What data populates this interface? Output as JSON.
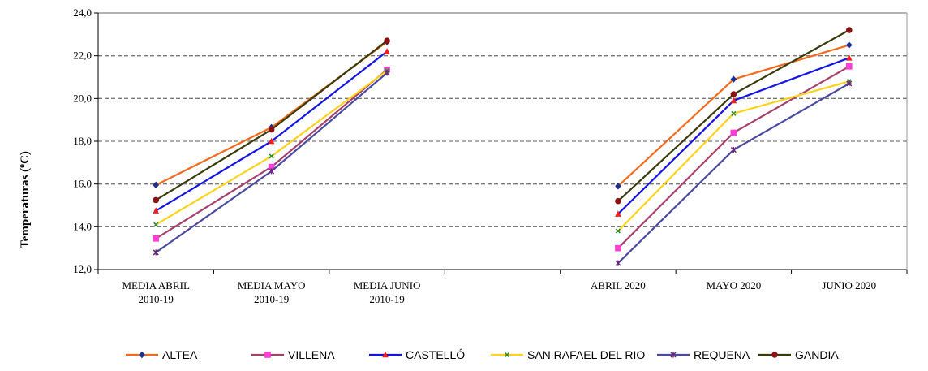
{
  "chart_data": {
    "type": "line",
    "title": "",
    "xlabel": "",
    "ylabel": "Temperaturas  (ºC)",
    "ylim": [
      12,
      24
    ],
    "yticks": [
      "12,0",
      "14,0",
      "16,0",
      "18,0",
      "20,0",
      "22,0",
      "24,0"
    ],
    "grid": "horizontal dashed",
    "legend_position": "bottom",
    "categories": [
      [
        "MEDIA ABRIL",
        "2010-19"
      ],
      [
        "MEDIA MAYO",
        "2010-19"
      ],
      [
        "MEDIA JUNIO",
        "2010-19"
      ],
      [
        ""
      ],
      [
        "ABRIL   2020"
      ],
      [
        "MAYO  2020"
      ],
      [
        "JUNIO  2020"
      ]
    ],
    "series": [
      {
        "name": "ALTEA",
        "color": "#f26b1d",
        "marker": "diamond",
        "marker_color": "#1f2f8f",
        "values": [
          15.95,
          18.65,
          22.65,
          null,
          15.9,
          20.9,
          22.5
        ]
      },
      {
        "name": "VILLENA",
        "color": "#a6416e",
        "marker": "square",
        "marker_color": "#ff3dd8",
        "values": [
          13.45,
          16.8,
          21.35,
          null,
          13.0,
          18.4,
          21.5
        ]
      },
      {
        "name": "CASTELLÓ",
        "color": "#1414e6",
        "marker": "triangle",
        "marker_color": "#ff1a1a",
        "values": [
          14.75,
          18.0,
          22.2,
          null,
          14.6,
          19.9,
          21.9
        ]
      },
      {
        "name": "SAN RAFAEL DEL RIO",
        "color": "#ffd21a",
        "marker": "x",
        "marker_color": "#2e8b2e",
        "values": [
          14.1,
          17.3,
          21.3,
          null,
          13.8,
          19.3,
          20.8
        ]
      },
      {
        "name": "REQUENA",
        "color": "#4a4aa0",
        "marker": "cross",
        "marker_color": "#6a2a7a",
        "values": [
          12.8,
          16.6,
          21.2,
          null,
          12.3,
          17.6,
          20.7
        ]
      },
      {
        "name": "GANDIA",
        "color": "#3a3a0a",
        "marker": "circle",
        "marker_color": "#8b1010",
        "values": [
          15.25,
          18.55,
          22.7,
          null,
          15.2,
          20.2,
          23.2
        ]
      }
    ]
  }
}
